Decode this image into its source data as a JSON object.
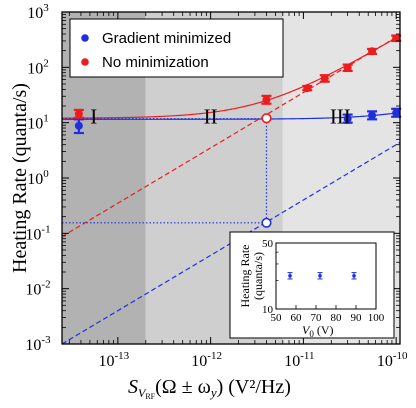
{
  "chart_data": {
    "type": "scatter",
    "x_scale": "log",
    "y_scale": "log",
    "xlim": [
      2.5e-14,
      1.1e-10
    ],
    "ylim": [
      0.001,
      1000
    ],
    "xlabel": {
      "symbol": "S",
      "sub": "V",
      "subsub": "RF",
      "rest": "(Ω ± ω",
      "rest_sub": "y",
      "tail": ") (V²/Hz)"
    },
    "ylabel": "Heating Rate (quanta/s)",
    "x_ticks": [
      {
        "value": 1e-13,
        "mant": "10",
        "exp": "-13"
      },
      {
        "value": 1e-12,
        "mant": "10",
        "exp": "-12"
      },
      {
        "value": 1e-11,
        "mant": "10",
        "exp": "-11"
      },
      {
        "value": 1e-10,
        "mant": "10",
        "exp": "-10"
      }
    ],
    "y_ticks": [
      {
        "value": 0.001,
        "mant": "10",
        "exp": "-3"
      },
      {
        "value": 0.01,
        "mant": "10",
        "exp": "-2"
      },
      {
        "value": 0.1,
        "mant": "10",
        "exp": "-1"
      },
      {
        "value": 1,
        "mant": "10",
        "exp": "0"
      },
      {
        "value": 10,
        "mant": "10",
        "exp": "1"
      },
      {
        "value": 100,
        "mant": "10",
        "exp": "2"
      },
      {
        "value": 1000,
        "mant": "10",
        "exp": "3"
      }
    ],
    "regions": [
      {
        "label": "I",
        "x_from": 2.5e-14,
        "x_to": 2e-13,
        "color": "#b2b2b2",
        "label_at": [
          5.5e-14,
          13
        ]
      },
      {
        "label": "II",
        "x_from": 2e-13,
        "x_to": 6e-12,
        "color": "#cfcfcf",
        "label_at": [
          1e-12,
          13
        ]
      },
      {
        "label": "III",
        "x_from": 6e-12,
        "x_to": 1.1e-10,
        "color": "#e4e4e4",
        "label_at": [
          2.5e-11,
          13
        ]
      }
    ],
    "series": [
      {
        "name": "Gradient minimized",
        "color": "#1f2fe0",
        "points": [
          {
            "x": 3.8e-14,
            "y": 8.8,
            "lo": 6.5,
            "hi": 11.5
          },
          {
            "x": 3e-11,
            "y": 11.8,
            "lo": 10.0,
            "hi": 14.0
          },
          {
            "x": 5.5e-11,
            "y": 13.5,
            "lo": 11.5,
            "hi": 16.0
          },
          {
            "x": 1e-10,
            "y": 15.0,
            "lo": 12.8,
            "hi": 17.8
          }
        ],
        "fit": {
          "base": 11.5,
          "slope": 35000000000.0
        },
        "extrapolation": {
          "kind": "linear",
          "coef": 40000000000.0
        }
      },
      {
        "name": "No minimization",
        "color": "#ee1c1c",
        "points": [
          {
            "x": 3.8e-14,
            "y": 14.5,
            "lo": 12.3,
            "hi": 17.0
          },
          {
            "x": 4e-12,
            "y": 26.0,
            "lo": 22.0,
            "hi": 30.5
          },
          {
            "x": 1.1e-11,
            "y": 42.0,
            "lo": 38.5,
            "hi": 46.0
          },
          {
            "x": 1.7e-11,
            "y": 63.0,
            "lo": 55.0,
            "hi": 72.0
          },
          {
            "x": 3e-11,
            "y": 98.0,
            "lo": 86.0,
            "hi": 112.0
          },
          {
            "x": 5.5e-11,
            "y": 195.0,
            "lo": 175.0,
            "hi": 215.0
          },
          {
            "x": 1e-10,
            "y": 335.0,
            "lo": 300.0,
            "hi": 375.0
          }
        ],
        "fit": {
          "base": 12.0,
          "slope": 3300000000000.0
        },
        "extrapolation": {
          "kind": "linear",
          "coef": 3500000000000.0
        }
      }
    ],
    "markers": [
      {
        "x": 4e-12,
        "y": 12.0,
        "style": "open-circle",
        "color": "#ee1c1c"
      },
      {
        "x": 4e-12,
        "y": 0.155,
        "style": "open-circle",
        "color": "#1f2fe0"
      }
    ],
    "guides": [
      {
        "from": [
          2.5e-14,
          11.8
        ],
        "to": [
          4e-12,
          11.8
        ],
        "color": "#1f2fe0"
      },
      {
        "from": [
          4e-12,
          11.8
        ],
        "to": [
          4e-12,
          0.155
        ],
        "color": "#1f2fe0"
      },
      {
        "from": [
          2.5e-14,
          0.155
        ],
        "to": [
          4e-12,
          0.155
        ],
        "color": "#1f2fe0"
      }
    ],
    "legend": {
      "placement": "top-left",
      "entries": [
        "Gradient minimized",
        "No minimization"
      ]
    },
    "inset": {
      "type": "scatter",
      "ylabel_line1": "Heating Rate",
      "ylabel_line2": "(quanta/s)",
      "xlabel_sym": "V",
      "xlabel_sub": "0",
      "xlabel_unit": " (V)",
      "xlim": [
        50,
        100
      ],
      "ylim": [
        10,
        50
      ],
      "y_scale": "log",
      "x_ticks": [
        "50",
        "60",
        "70",
        "80",
        "90",
        "100"
      ],
      "x_tick_values": [
        50,
        60,
        70,
        80,
        90,
        100
      ],
      "y_ticks": [
        "10",
        "50"
      ],
      "y_tick_values": [
        10,
        50
      ],
      "color": "#1f2fe0",
      "points": [
        {
          "x": 57,
          "y": 22.5,
          "lo": 20.8,
          "hi": 24.3
        },
        {
          "x": 72,
          "y": 22.5,
          "lo": 20.8,
          "hi": 24.3
        },
        {
          "x": 89,
          "y": 22.5,
          "lo": 20.8,
          "hi": 24.3
        }
      ]
    }
  }
}
